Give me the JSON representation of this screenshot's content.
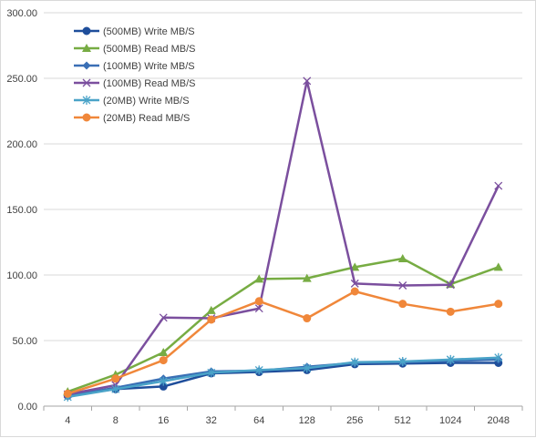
{
  "chart_data": {
    "type": "line",
    "categories": [
      "4",
      "8",
      "16",
      "32",
      "64",
      "128",
      "256",
      "512",
      "1024",
      "2048"
    ],
    "ylim": [
      0,
      300
    ],
    "yticks": [
      "0.00",
      "50.00",
      "100.00",
      "150.00",
      "200.00",
      "250.00",
      "300.00"
    ],
    "grid": "horizontal",
    "legend_position": "top-left",
    "series": [
      {
        "name": "(500MB) Write MB/S",
        "color": "#1f4e9b",
        "marker": "circle",
        "values": [
          8,
          13,
          15,
          25,
          26,
          27.5,
          32,
          32.5,
          33,
          33
        ]
      },
      {
        "name": "(500MB) Read MB/S",
        "color": "#77ac43",
        "marker": "triangle",
        "values": [
          11,
          24,
          41,
          73,
          97,
          97.5,
          106,
          112.5,
          93,
          106
        ]
      },
      {
        "name": "(100MB) Write MB/S",
        "color": "#3a6fb5",
        "marker": "diamond",
        "values": [
          8,
          14,
          21,
          26.5,
          27,
          30,
          33,
          33.5,
          34.5,
          35.5
        ]
      },
      {
        "name": "(100MB) Read MB/S",
        "color": "#7b4f9e",
        "marker": "x",
        "values": [
          9,
          16,
          67.5,
          67,
          74.5,
          248,
          93.5,
          92,
          92.5,
          168
        ]
      },
      {
        "name": "(20MB) Write MB/S",
        "color": "#4aa3c8",
        "marker": "star",
        "values": [
          7,
          13,
          19,
          25.5,
          27.5,
          29,
          33.5,
          34,
          35.5,
          37
        ]
      },
      {
        "name": "(20MB) Read MB/S",
        "color": "#f0873a",
        "marker": "circle",
        "values": [
          9.5,
          21,
          35,
          66,
          80,
          67,
          87.5,
          78,
          72,
          78
        ]
      }
    ]
  }
}
